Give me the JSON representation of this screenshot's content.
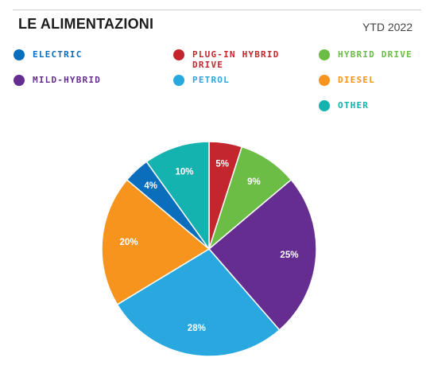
{
  "header": {
    "title": "LE ALIMENTAZIONI",
    "period": "YTD 2022"
  },
  "chart_data": {
    "type": "pie",
    "title": "LE ALIMENTAZIONI",
    "subtitle": "YTD 2022",
    "legend_position": "top",
    "series": [
      {
        "name": "PLUG-IN HYBRID DRIVE",
        "value": 5,
        "label": "5%",
        "color": "#c4262e"
      },
      {
        "name": "HYBRID DRIVE",
        "value": 9,
        "label": "9%",
        "color": "#6cbd45"
      },
      {
        "name": "MILD-HYBRID",
        "value": 25,
        "label": "25%",
        "color": "#662d91"
      },
      {
        "name": "PETROL",
        "value": 28,
        "label": "28%",
        "color": "#29a8e0"
      },
      {
        "name": "DIESEL",
        "value": 20,
        "label": "20%",
        "color": "#f7941d"
      },
      {
        "name": "ELECTRIC",
        "value": 4,
        "label": "4%",
        "color": "#0a6ebd"
      },
      {
        "name": "OTHER",
        "value": 10,
        "label": "10%",
        "color": "#15b3b0"
      }
    ]
  },
  "legend": {
    "items": [
      {
        "label": "ELECTRIC",
        "color": "#0a6ebd"
      },
      {
        "label": "PLUG-IN HYBRID DRIVE",
        "color": "#c4262e"
      },
      {
        "label": "HYBRID DRIVE",
        "color": "#6cbd45"
      },
      {
        "label": "MILD-HYBRID",
        "color": "#662d91"
      },
      {
        "label": "PETROL",
        "color": "#29a8e0"
      },
      {
        "label": "DIESEL",
        "color": "#f7941d"
      },
      {
        "label": "OTHER",
        "color": "#15b3b0"
      }
    ]
  }
}
